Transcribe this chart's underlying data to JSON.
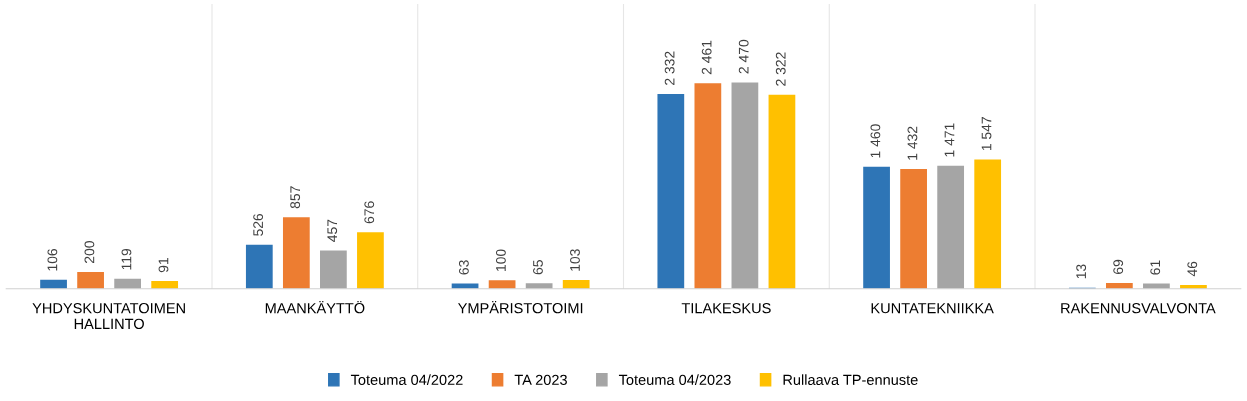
{
  "chart_data": {
    "type": "bar",
    "categories": [
      "YHDYSKUNTATOIMEN\nHALLINTO",
      "MAANKÄYTTÖ",
      "YMPÄRISTOTOIMI",
      "TILAKESKUS",
      "KUNTATEKNIIKKA",
      "RAKENNUSVALVONTA"
    ],
    "series": [
      {
        "name": "Toteuma 04/2022",
        "color": "#2e75b6",
        "values": [
          106,
          526,
          63,
          2332,
          1460,
          13
        ],
        "value_labels": [
          "106",
          "526",
          "63",
          "2 332",
          "1 460",
          "13"
        ]
      },
      {
        "name": "TA 2023",
        "color": "#ed7d31",
        "values": [
          200,
          857,
          100,
          2461,
          1432,
          69
        ],
        "value_labels": [
          "200",
          "857",
          "100",
          "2 461",
          "1 432",
          "69"
        ]
      },
      {
        "name": "Toteuma 04/2023",
        "color": "#a5a5a5",
        "values": [
          119,
          457,
          65,
          2470,
          1471,
          61
        ],
        "value_labels": [
          "119",
          "457",
          "65",
          "2 470",
          "1 471",
          "61"
        ]
      },
      {
        "name": "Rullaava TP-ennuste",
        "color": "#ffc000",
        "values": [
          91,
          676,
          103,
          2322,
          1547,
          46
        ],
        "value_labels": [
          "91",
          "676",
          "103",
          "2 322",
          "1 547",
          "46"
        ]
      }
    ],
    "legend": "bottom",
    "grid": "x"
  }
}
